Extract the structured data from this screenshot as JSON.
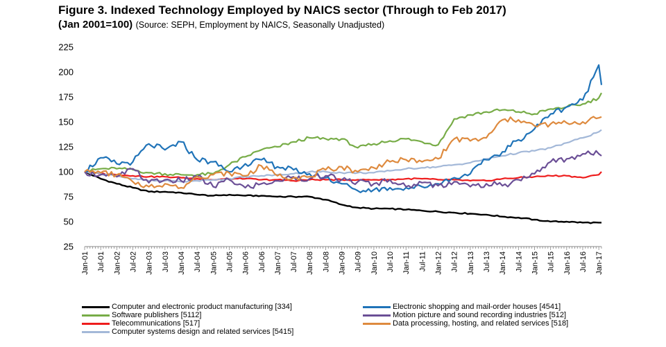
{
  "header": {
    "title": "Figure 3. Indexed Technology Employed by NAICS sector (Through to Feb 2017)",
    "subtitle_bold": "(Jan 2001=100)",
    "subtitle_note": "(Source: SEPH, Employment by NAICS, Seasonally Unadjusted)"
  },
  "chart_data": {
    "type": "line",
    "title": "Figure 3. Indexed Technology Employed by NAICS sector (Through to Feb 2017)",
    "subtitle": "(Jan 2001=100) (Source: SEPH, Employment by NAICS, Seasonally Unadjusted)",
    "xlabel": "",
    "ylabel": "",
    "ylim": [
      25,
      225
    ],
    "yticks": [
      25,
      50,
      75,
      100,
      125,
      150,
      175,
      200,
      225
    ],
    "grid": false,
    "legend_position": "bottom",
    "x_start": "Jan-01",
    "x_end": "Feb-17",
    "xticks": [
      "Jan-01",
      "Jul-01",
      "Jan-02",
      "Jul-02",
      "Jan-03",
      "Jul-03",
      "Jan-04",
      "Jul-04",
      "Jan-05",
      "Jul-05",
      "Jan-06",
      "Jul-06",
      "Jan-07",
      "Jul-07",
      "Jan-08",
      "Jul-08",
      "Jan-09",
      "Jul-09",
      "Jan-10",
      "Jul-10",
      "Jan-11",
      "Jul-11",
      "Jan-12",
      "Jul-12",
      "Jan-13",
      "Jul-13",
      "Jan-14",
      "Jul-14",
      "Jan-15",
      "Jul-15",
      "Jan-16",
      "Jul-16",
      "Jan-17"
    ],
    "series": [
      {
        "name": "Computer and electronic product manufacturing [334]",
        "color": "#000000",
        "points": [
          [
            "Jan-01",
            100
          ],
          [
            "Jul-01",
            93
          ],
          [
            "Jan-02",
            88
          ],
          [
            "Jul-02",
            84
          ],
          [
            "Jan-03",
            80
          ],
          [
            "Jul-03",
            80
          ],
          [
            "Jan-04",
            79
          ],
          [
            "Jul-04",
            77
          ],
          [
            "Jan-05",
            76
          ],
          [
            "Jul-05",
            77
          ],
          [
            "Jan-06",
            76
          ],
          [
            "Jul-06",
            76
          ],
          [
            "Jan-07",
            75
          ],
          [
            "Jul-07",
            75
          ],
          [
            "Jan-08",
            75
          ],
          [
            "Jul-08",
            72
          ],
          [
            "Jan-09",
            67
          ],
          [
            "Jul-09",
            64
          ],
          [
            "Jan-10",
            63
          ],
          [
            "Jul-10",
            63
          ],
          [
            "Jan-11",
            62
          ],
          [
            "Jul-11",
            61
          ],
          [
            "Jan-12",
            60
          ],
          [
            "Jul-12",
            59
          ],
          [
            "Jan-13",
            58
          ],
          [
            "Jul-13",
            57
          ],
          [
            "Jan-14",
            55
          ],
          [
            "Jul-14",
            54
          ],
          [
            "Jan-15",
            52
          ],
          [
            "Jul-15",
            50
          ],
          [
            "Jan-16",
            50
          ],
          [
            "Jul-16",
            49
          ],
          [
            "Jan-17",
            49
          ],
          [
            "Feb-17",
            49
          ]
        ]
      },
      {
        "name": "Software publishers [5112]",
        "color": "#77ac47",
        "points": [
          [
            "Jan-01",
            100
          ],
          [
            "Jul-01",
            103
          ],
          [
            "Jan-02",
            103
          ],
          [
            "Jul-02",
            102
          ],
          [
            "Jan-03",
            99
          ],
          [
            "Jul-03",
            98
          ],
          [
            "Jan-04",
            97
          ],
          [
            "Jul-04",
            97
          ],
          [
            "Jan-05",
            98
          ],
          [
            "Jul-05",
            107
          ],
          [
            "Jan-06",
            115
          ],
          [
            "Jul-06",
            122
          ],
          [
            "Jan-07",
            125
          ],
          [
            "Jul-07",
            130
          ],
          [
            "Jan-08",
            134
          ],
          [
            "Jul-08",
            133
          ],
          [
            "Jan-09",
            133
          ],
          [
            "Jul-09",
            124
          ],
          [
            "Jan-10",
            128
          ],
          [
            "Jul-10",
            131
          ],
          [
            "Jan-11",
            133
          ],
          [
            "Jul-11",
            130
          ],
          [
            "Jan-12",
            127
          ],
          [
            "Jul-12",
            153
          ],
          [
            "Jan-13",
            157
          ],
          [
            "Jul-13",
            160
          ],
          [
            "Jan-14",
            162
          ],
          [
            "Jul-14",
            160
          ],
          [
            "Jan-15",
            158
          ],
          [
            "Jul-15",
            163
          ],
          [
            "Jan-16",
            165
          ],
          [
            "Jul-16",
            168
          ],
          [
            "Jan-17",
            174
          ],
          [
            "Feb-17",
            179
          ]
        ]
      },
      {
        "name": "Telecommunications [517]",
        "color": "#ee1c1c",
        "points": [
          [
            "Jan-01",
            100
          ],
          [
            "Jul-01",
            98
          ],
          [
            "Jan-02",
            97
          ],
          [
            "Jul-02",
            96
          ],
          [
            "Jan-03",
            95
          ],
          [
            "Jul-03",
            95
          ],
          [
            "Jan-04",
            94
          ],
          [
            "Jul-04",
            93
          ],
          [
            "Jan-05",
            92
          ],
          [
            "Jul-05",
            93
          ],
          [
            "Jan-06",
            93
          ],
          [
            "Jul-06",
            92
          ],
          [
            "Jan-07",
            92
          ],
          [
            "Jul-07",
            91
          ],
          [
            "Jan-08",
            92
          ],
          [
            "Jul-08",
            92
          ],
          [
            "Jan-09",
            92
          ],
          [
            "Jul-09",
            92
          ],
          [
            "Jan-10",
            92
          ],
          [
            "Jul-10",
            92
          ],
          [
            "Jan-11",
            93
          ],
          [
            "Jul-11",
            93
          ],
          [
            "Jan-12",
            92
          ],
          [
            "Jul-12",
            92
          ],
          [
            "Jan-13",
            91
          ],
          [
            "Jul-13",
            91
          ],
          [
            "Jan-14",
            93
          ],
          [
            "Jul-14",
            94
          ],
          [
            "Jan-15",
            95
          ],
          [
            "Jul-15",
            96
          ],
          [
            "Jan-16",
            96
          ],
          [
            "Jul-16",
            94
          ],
          [
            "Jan-17",
            97
          ],
          [
            "Feb-17",
            100
          ]
        ]
      },
      {
        "name": "Computer systems design and related services [5415]",
        "color": "#a3b8d8",
        "points": [
          [
            "Jan-01",
            100
          ],
          [
            "Jul-01",
            98
          ],
          [
            "Jan-02",
            96
          ],
          [
            "Jul-02",
            93
          ],
          [
            "Jan-03",
            91
          ],
          [
            "Jul-03",
            91
          ],
          [
            "Jan-04",
            90
          ],
          [
            "Jul-04",
            91
          ],
          [
            "Jan-05",
            92
          ],
          [
            "Jul-05",
            93
          ],
          [
            "Jan-06",
            95
          ],
          [
            "Jul-06",
            96
          ],
          [
            "Jan-07",
            97
          ],
          [
            "Jul-07",
            98
          ],
          [
            "Jan-08",
            100
          ],
          [
            "Jul-08",
            100
          ],
          [
            "Jan-09",
            99
          ],
          [
            "Jul-09",
            99
          ],
          [
            "Jan-10",
            99
          ],
          [
            "Jul-10",
            101
          ],
          [
            "Jan-11",
            103
          ],
          [
            "Jul-11",
            104
          ],
          [
            "Jan-12",
            105
          ],
          [
            "Jul-12",
            107
          ],
          [
            "Jan-13",
            109
          ],
          [
            "Jul-13",
            113
          ],
          [
            "Jan-14",
            116
          ],
          [
            "Jul-14",
            119
          ],
          [
            "Jan-15",
            121
          ],
          [
            "Jul-15",
            124
          ],
          [
            "Jan-16",
            129
          ],
          [
            "Jul-16",
            134
          ],
          [
            "Jan-17",
            140
          ],
          [
            "Feb-17",
            142
          ]
        ]
      },
      {
        "name": "Electronic shopping and mail-order houses [4541]",
        "color": "#1f73b8",
        "points": [
          [
            "Jan-01",
            100
          ],
          [
            "Jul-01",
            114
          ],
          [
            "Jan-02",
            108
          ],
          [
            "Jul-02",
            110
          ],
          [
            "Jan-03",
            128
          ],
          [
            "Jul-03",
            122
          ],
          [
            "Jan-04",
            130
          ],
          [
            "Jul-04",
            112
          ],
          [
            "Jan-05",
            110
          ],
          [
            "Jul-05",
            100
          ],
          [
            "Jan-06",
            108
          ],
          [
            "Jul-06",
            112
          ],
          [
            "Jan-07",
            105
          ],
          [
            "Jul-07",
            102
          ],
          [
            "Jan-08",
            98
          ],
          [
            "Jul-08",
            94
          ],
          [
            "Jan-09",
            88
          ],
          [
            "Jul-09",
            81
          ],
          [
            "Jan-10",
            82
          ],
          [
            "Jul-10",
            84
          ],
          [
            "Jan-11",
            84
          ],
          [
            "Jul-11",
            85
          ],
          [
            "Jan-12",
            88
          ],
          [
            "Jul-12",
            94
          ],
          [
            "Jan-13",
            98
          ],
          [
            "Jul-13",
            112
          ],
          [
            "Jan-14",
            120
          ],
          [
            "Jul-14",
            132
          ],
          [
            "Jan-15",
            143
          ],
          [
            "Jul-15",
            158
          ],
          [
            "Jan-16",
            165
          ],
          [
            "Jul-16",
            172
          ],
          [
            "Jan-17",
            207
          ],
          [
            "Feb-17",
            187
          ]
        ]
      },
      {
        "name": "Motion picture and sound recording industries [512]",
        "color": "#6b4f96",
        "points": [
          [
            "Jan-01",
            100
          ],
          [
            "Jul-01",
            97
          ],
          [
            "Jan-02",
            95
          ],
          [
            "Jul-02",
            103
          ],
          [
            "Jan-03",
            89
          ],
          [
            "Jul-03",
            92
          ],
          [
            "Jan-04",
            91
          ],
          [
            "Jul-04",
            95
          ],
          [
            "Jan-05",
            85
          ],
          [
            "Jul-05",
            92
          ],
          [
            "Jan-06",
            84
          ],
          [
            "Jul-06",
            88
          ],
          [
            "Jan-07",
            91
          ],
          [
            "Jul-07",
            95
          ],
          [
            "Jan-08",
            93
          ],
          [
            "Jul-08",
            96
          ],
          [
            "Jan-09",
            92
          ],
          [
            "Jul-09",
            90
          ],
          [
            "Jan-10",
            88
          ],
          [
            "Jul-10",
            92
          ],
          [
            "Jan-11",
            85
          ],
          [
            "Jul-11",
            89
          ],
          [
            "Jan-12",
            86
          ],
          [
            "Jul-12",
            90
          ],
          [
            "Jan-13",
            85
          ],
          [
            "Jul-13",
            88
          ],
          [
            "Jan-14",
            86
          ],
          [
            "Jul-14",
            92
          ],
          [
            "Jan-15",
            98
          ],
          [
            "Jul-15",
            110
          ],
          [
            "Jan-16",
            113
          ],
          [
            "Jul-16",
            118
          ],
          [
            "Jan-17",
            118
          ],
          [
            "Feb-17",
            116
          ]
        ]
      },
      {
        "name": "Data processing, hosting, and related services [518]",
        "color": "#de8a3e",
        "points": [
          [
            "Jan-01",
            100
          ],
          [
            "Jul-01",
            99
          ],
          [
            "Jan-02",
            97
          ],
          [
            "Jul-02",
            90
          ],
          [
            "Jan-03",
            85
          ],
          [
            "Jul-03",
            88
          ],
          [
            "Jan-04",
            84
          ],
          [
            "Jul-04",
            95
          ],
          [
            "Jan-05",
            97
          ],
          [
            "Jul-05",
            99
          ],
          [
            "Jan-06",
            96
          ],
          [
            "Jul-06",
            106
          ],
          [
            "Jan-07",
            96
          ],
          [
            "Jul-07",
            94
          ],
          [
            "Jan-08",
            95
          ],
          [
            "Jul-08",
            102
          ],
          [
            "Jan-09",
            105
          ],
          [
            "Jul-09",
            100
          ],
          [
            "Jan-10",
            104
          ],
          [
            "Jul-10",
            110
          ],
          [
            "Jan-11",
            112
          ],
          [
            "Jul-11",
            110
          ],
          [
            "Jan-12",
            113
          ],
          [
            "Jul-12",
            133
          ],
          [
            "Jan-13",
            131
          ],
          [
            "Jul-13",
            134
          ],
          [
            "Jan-14",
            152
          ],
          [
            "Jul-14",
            152
          ],
          [
            "Jan-15",
            146
          ],
          [
            "Jul-15",
            148
          ],
          [
            "Jan-16",
            149
          ],
          [
            "Jul-16",
            150
          ],
          [
            "Jan-17",
            154
          ],
          [
            "Feb-17",
            155
          ]
        ]
      }
    ]
  },
  "legend": {
    "items": [
      {
        "label": "Computer and electronic product manufacturing [334]",
        "color": "#000000"
      },
      {
        "label": "Electronic shopping and mail-order houses [4541]",
        "color": "#1f73b8"
      },
      {
        "label": "Software publishers [5112]",
        "color": "#77ac47"
      },
      {
        "label": "Motion picture and sound recording industries [512]",
        "color": "#6b4f96"
      },
      {
        "label": "Telecommunications [517]",
        "color": "#ee1c1c"
      },
      {
        "label": "Data processing, hosting, and related services [518]",
        "color": "#de8a3e"
      },
      {
        "label": "Computer systems design and related services [5415]",
        "color": "#a3b8d8"
      }
    ]
  }
}
